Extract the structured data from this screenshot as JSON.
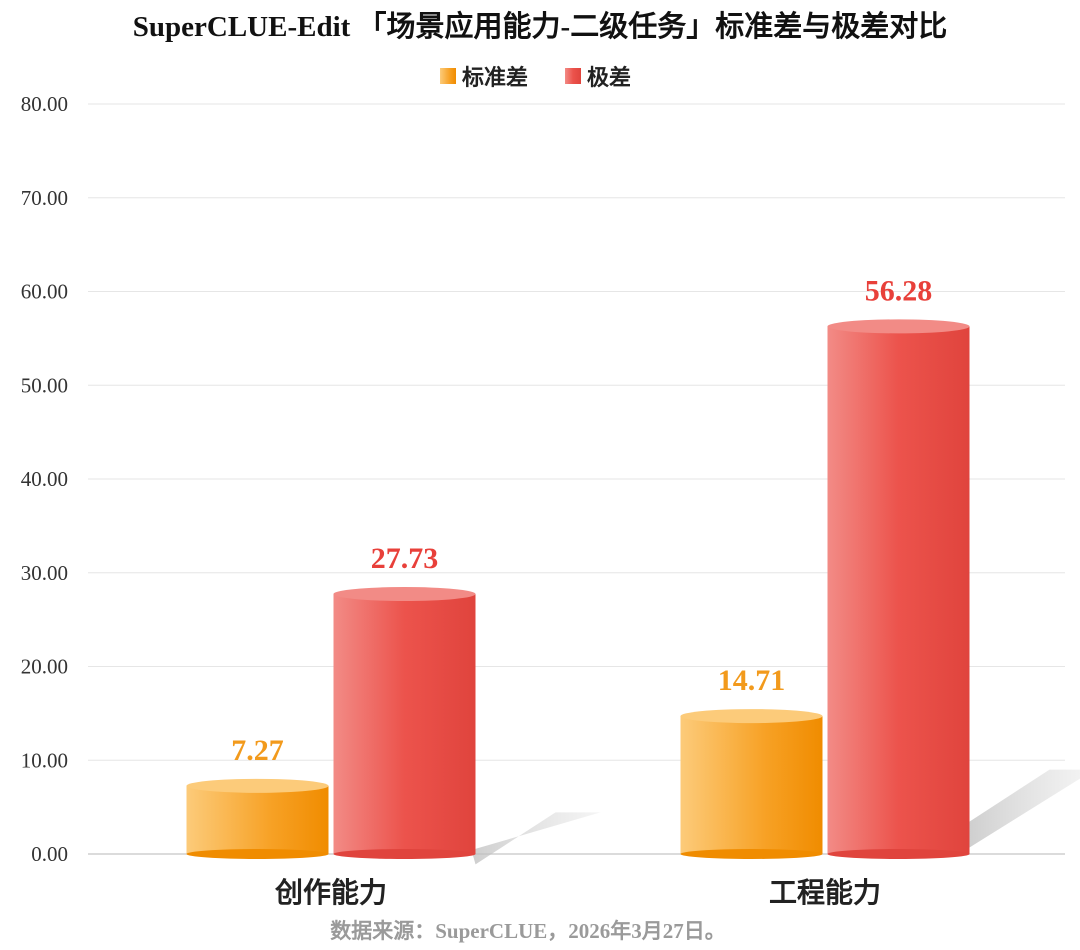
{
  "chart_data": {
    "type": "bar",
    "title": "SuperCLUE-Edit 「场景应用能力-二级任务」标准差与极差对比",
    "categories": [
      "创作能力",
      "工程能力"
    ],
    "series": [
      {
        "name": "标准差",
        "values": [
          7.27,
          14.71
        ],
        "labels": [
          "7.27",
          "14.71"
        ],
        "color": "#f7a125",
        "light": "#fccb7a",
        "dark": "#f08c00",
        "label_color": "#f29a1c"
      },
      {
        "name": "极差",
        "values": [
          27.73,
          56.28
        ],
        "labels": [
          "27.73",
          "56.28"
        ],
        "color": "#ec534c",
        "light": "#f28b86",
        "dark": "#e0443d",
        "label_color": "#e8403a"
      }
    ],
    "ylim": [
      0,
      80
    ],
    "yticks": [
      "0.00",
      "10.00",
      "20.00",
      "30.00",
      "40.00",
      "50.00",
      "60.00",
      "70.00",
      "80.00"
    ],
    "ytick_values": [
      0,
      10,
      20,
      30,
      40,
      50,
      60,
      70,
      80
    ],
    "xlabel": "",
    "ylabel": "",
    "grid": true,
    "legend_position": "top-center",
    "source": "数据来源：SuperCLUE，2026年3月27日。"
  }
}
